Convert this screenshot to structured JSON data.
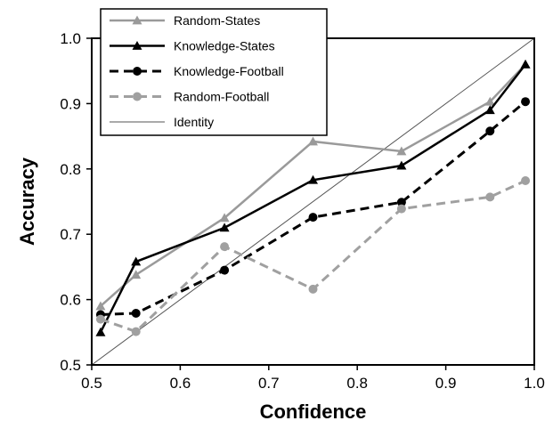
{
  "chart_data": {
    "type": "line",
    "title": "",
    "xlabel": "Confidence",
    "ylabel": "Accuracy",
    "xlim": [
      0.5,
      1.0
    ],
    "ylim": [
      0.5,
      1.0
    ],
    "x_ticks": [
      "0.5",
      "0.6",
      "0.7",
      "0.8",
      "0.9",
      "1.0"
    ],
    "y_ticks": [
      "0.5",
      "0.6",
      "0.7",
      "0.8",
      "0.9",
      "1.0"
    ],
    "grid": false,
    "legend_position": "top-left",
    "series": [
      {
        "name": "Random-States",
        "color": "#9a9a9a",
        "dash": "solid",
        "marker": "triangle",
        "points": [
          [
            0.51,
            0.59
          ],
          [
            0.55,
            0.638
          ],
          [
            0.65,
            0.725
          ],
          [
            0.75,
            0.842
          ],
          [
            0.85,
            0.827
          ],
          [
            0.95,
            0.903
          ],
          [
            0.99,
            0.96
          ]
        ]
      },
      {
        "name": "Knowledge-States",
        "color": "#000000",
        "dash": "solid",
        "marker": "triangle",
        "points": [
          [
            0.51,
            0.55
          ],
          [
            0.55,
            0.658
          ],
          [
            0.65,
            0.71
          ],
          [
            0.75,
            0.783
          ],
          [
            0.85,
            0.805
          ],
          [
            0.95,
            0.89
          ],
          [
            0.99,
            0.96
          ]
        ]
      },
      {
        "name": "Knowledge-Football",
        "color": "#000000",
        "dash": "dashed",
        "marker": "circle",
        "points": [
          [
            0.51,
            0.577
          ],
          [
            0.55,
            0.579
          ],
          [
            0.65,
            0.645
          ],
          [
            0.75,
            0.726
          ],
          [
            0.85,
            0.749
          ],
          [
            0.95,
            0.858
          ],
          [
            0.99,
            0.903
          ]
        ]
      },
      {
        "name": "Random-Football",
        "color": "#a0a0a0",
        "dash": "dashed",
        "marker": "circle",
        "points": [
          [
            0.51,
            0.57
          ],
          [
            0.55,
            0.551
          ],
          [
            0.65,
            0.681
          ],
          [
            0.75,
            0.616
          ],
          [
            0.85,
            0.739
          ],
          [
            0.95,
            0.757
          ],
          [
            0.99,
            0.782
          ]
        ]
      },
      {
        "name": "Identity",
        "color": "#555555",
        "dash": "thin",
        "marker": "none",
        "points": [
          [
            0.5,
            0.5
          ],
          [
            1.0,
            1.0
          ]
        ]
      }
    ]
  }
}
